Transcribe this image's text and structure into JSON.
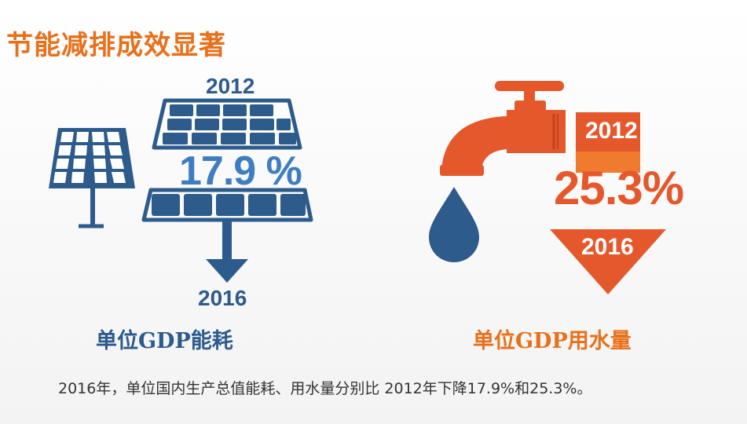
{
  "title": "节能减排成效显著",
  "energy": {
    "year_start": "2012",
    "percent": "17.9 %",
    "year_end": "2016",
    "caption": "单位GDP能耗"
  },
  "water": {
    "year_start": "2012",
    "percent": "25.3%",
    "year_end": "2016",
    "caption": "单位GDP用水量"
  },
  "footnote": "2016年，单位国内生产总值能耗、用水量分别比 2012年下降17.9%和25.3%。",
  "colors": {
    "orange": "#e8701a",
    "navy": "#2c5b8c",
    "blue": "#3f7dc1"
  }
}
